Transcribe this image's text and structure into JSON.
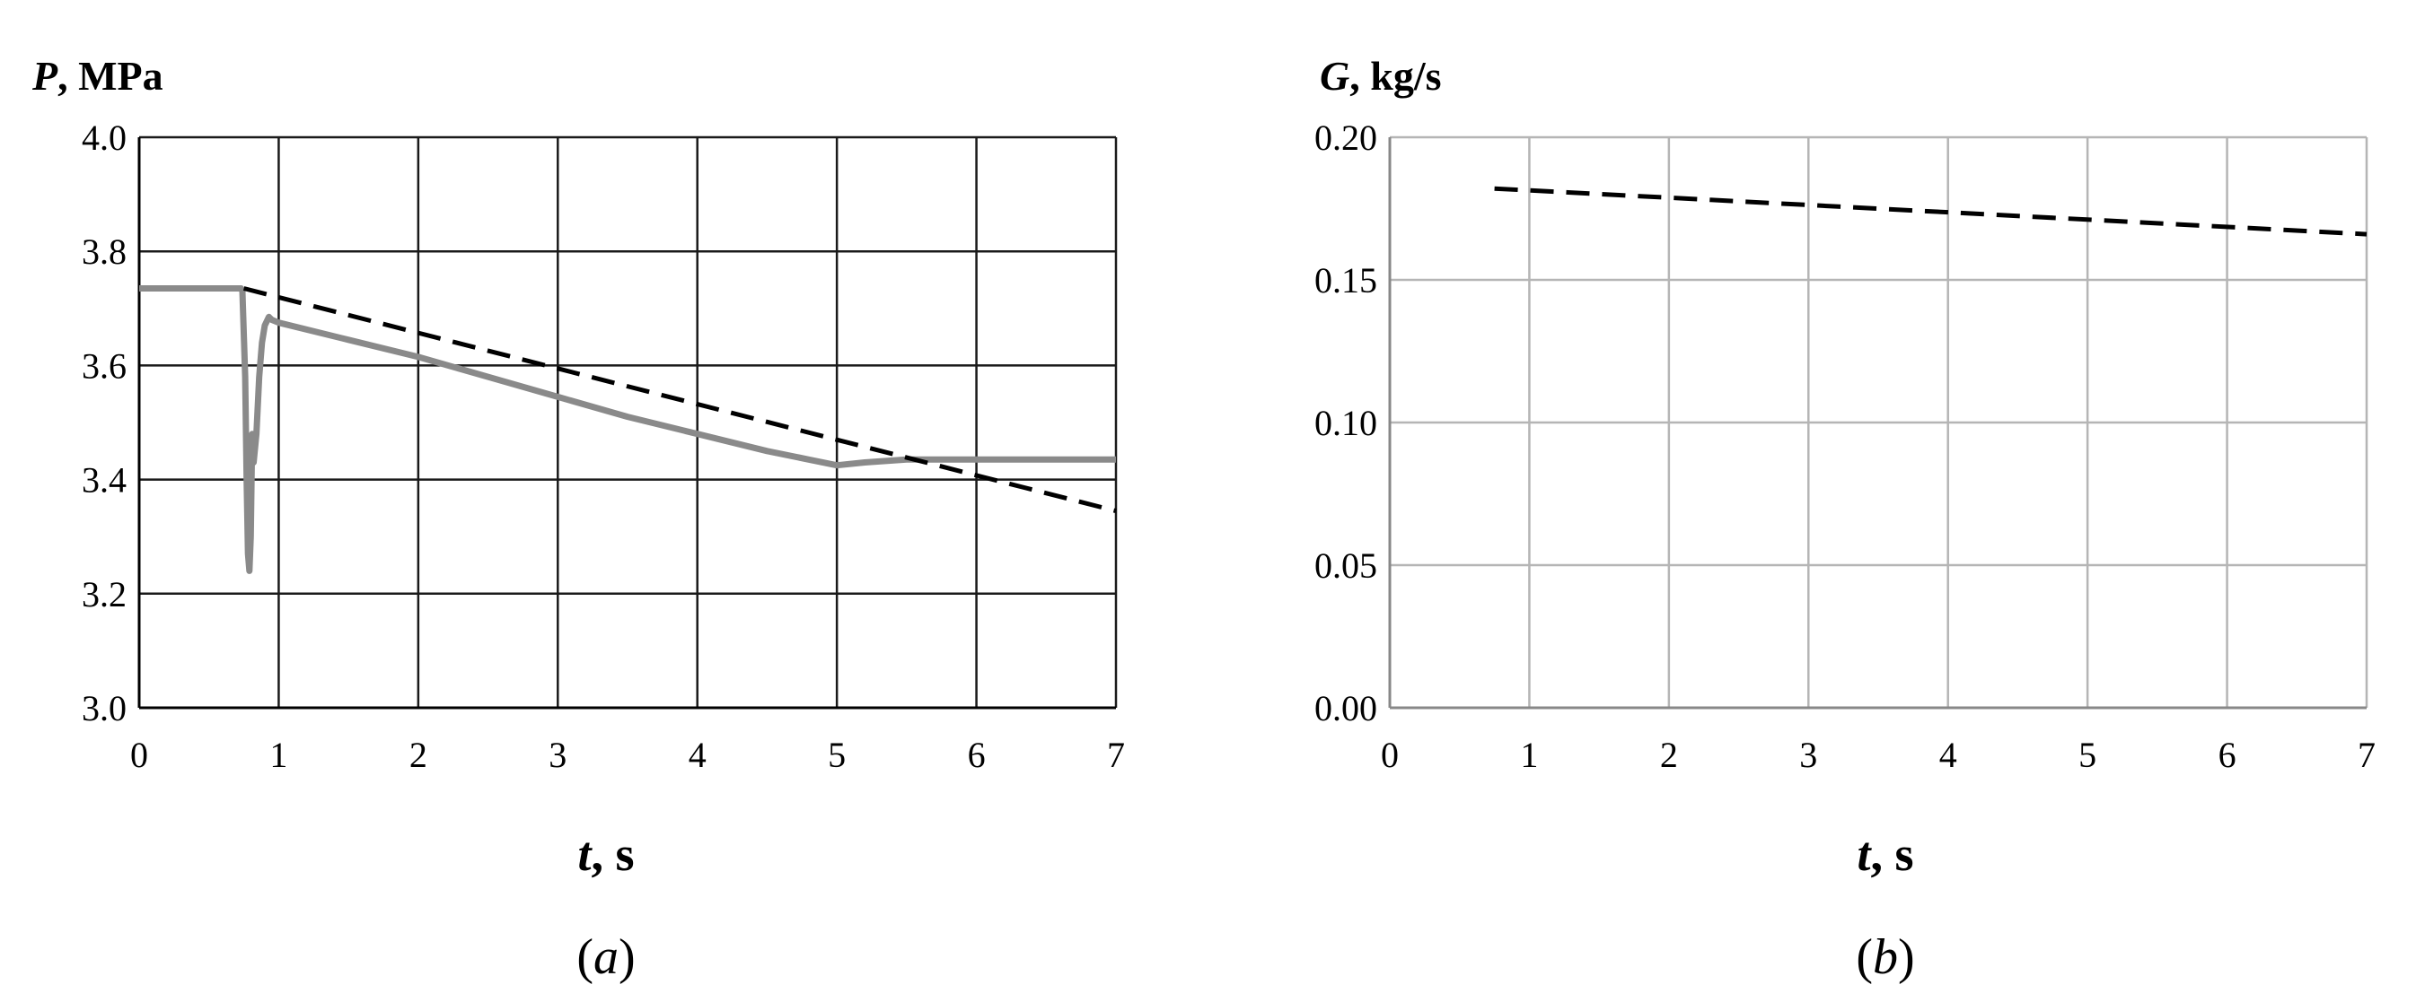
{
  "chart_data": [
    {
      "type": "line",
      "ylabel_var": "P",
      "ylabel_unit": ", MPa",
      "xlabel_var": "t",
      "xlabel_unit": ", s",
      "caption_open": "(",
      "caption_letter": "a",
      "caption_close": ")",
      "xlim": [
        0,
        7
      ],
      "ylim": [
        3.0,
        4.0
      ],
      "x_ticks": [
        "0",
        "1",
        "2",
        "3",
        "4",
        "5",
        "6",
        "7"
      ],
      "y_ticks": [
        "3.0",
        "3.2",
        "3.4",
        "3.6",
        "3.8",
        "4.0"
      ],
      "x_tick_values": [
        0,
        1,
        2,
        3,
        4,
        5,
        6,
        7
      ],
      "y_tick_values": [
        3.0,
        3.2,
        3.4,
        3.6,
        3.8,
        4.0
      ],
      "grid": true,
      "series": [
        {
          "style": "solid",
          "color": "#8a8a8a",
          "x": [
            0,
            0.73,
            0.74,
            0.76,
            0.77,
            0.78,
            0.79,
            0.8,
            0.81,
            0.82,
            0.84,
            0.86,
            0.88,
            0.9,
            0.93,
            0.95,
            1.0,
            1.5,
            2.0,
            2.5,
            3.0,
            3.5,
            4.0,
            4.5,
            5.0,
            5.2,
            5.5,
            6.0,
            6.5,
            7.0
          ],
          "y": [
            3.735,
            3.735,
            3.73,
            3.58,
            3.4,
            3.27,
            3.24,
            3.3,
            3.48,
            3.43,
            3.48,
            3.58,
            3.64,
            3.67,
            3.685,
            3.68,
            3.675,
            3.645,
            3.615,
            3.58,
            3.545,
            3.51,
            3.48,
            3.45,
            3.425,
            3.43,
            3.435,
            3.435,
            3.435,
            3.435
          ]
        },
        {
          "style": "dashed",
          "color": "#000000",
          "x": [
            0.75,
            7.0
          ],
          "y": [
            3.735,
            3.345
          ]
        }
      ]
    },
    {
      "type": "line",
      "ylabel_var": "G",
      "ylabel_unit": ", kg/s",
      "xlabel_var": "t",
      "xlabel_unit": ", s",
      "caption_open": "(",
      "caption_letter": "b",
      "caption_close": ")",
      "xlim": [
        0,
        7
      ],
      "ylim": [
        0.0,
        0.2
      ],
      "x_ticks": [
        "0",
        "1",
        "2",
        "3",
        "4",
        "5",
        "6",
        "7"
      ],
      "y_ticks": [
        "0.00",
        "0.05",
        "0.10",
        "0.15",
        "0.20"
      ],
      "x_tick_values": [
        0,
        1,
        2,
        3,
        4,
        5,
        6,
        7
      ],
      "y_tick_values": [
        0.0,
        0.05,
        0.1,
        0.15,
        0.2
      ],
      "grid": true,
      "series": [
        {
          "style": "dashed",
          "color": "#000000",
          "x": [
            0.75,
            7.0
          ],
          "y": [
            0.182,
            0.166
          ]
        }
      ]
    }
  ]
}
